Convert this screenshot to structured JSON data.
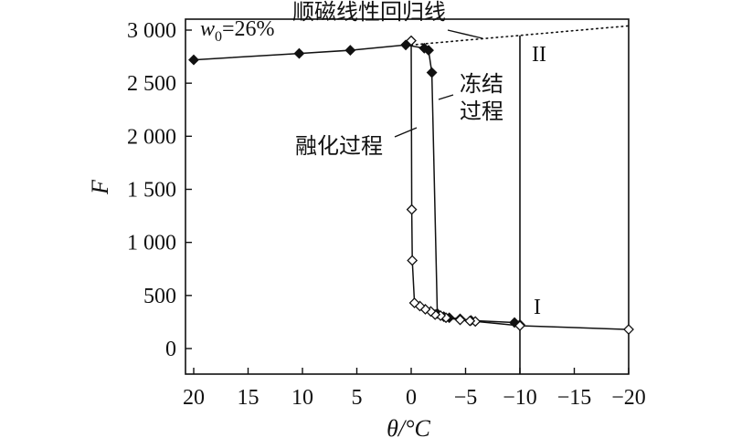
{
  "chart_data": {
    "type": "line",
    "xlabel": "θ/°C",
    "ylabel": "F",
    "x_reversed": true,
    "xlim": [
      20,
      -20
    ],
    "ylim": [
      -250,
      3100
    ],
    "x_ticks": [
      {
        "value": 20,
        "label": "20"
      },
      {
        "value": 15,
        "label": "15"
      },
      {
        "value": 10,
        "label": "10"
      },
      {
        "value": 5,
        "label": "5"
      },
      {
        "value": 0,
        "label": "0"
      },
      {
        "value": -5,
        "label": "−5"
      },
      {
        "value": -10,
        "label": "−10"
      },
      {
        "value": -15,
        "label": "−15"
      },
      {
        "value": -20,
        "label": "−20"
      }
    ],
    "y_ticks": [
      {
        "value": 0,
        "label": "0"
      },
      {
        "value": 500,
        "label": "500"
      },
      {
        "value": 1000,
        "label": "1 000"
      },
      {
        "value": 1500,
        "label": "1 500"
      },
      {
        "value": 2000,
        "label": "2 000"
      },
      {
        "value": 2500,
        "label": "2 500"
      },
      {
        "value": 3000,
        "label": "3 000"
      }
    ],
    "series": [
      {
        "marker": "filled-diamond",
        "points": [
          {
            "x": 20,
            "y": 2720
          },
          {
            "x": 10.3,
            "y": 2780
          },
          {
            "x": 5.6,
            "y": 2810
          },
          {
            "x": 0.5,
            "y": 2860
          },
          {
            "x": -1.2,
            "y": 2830
          },
          {
            "x": -1.6,
            "y": 2810
          },
          {
            "x": -1.9,
            "y": 2600
          },
          {
            "x": -2.4,
            "y": 330
          },
          {
            "x": -3,
            "y": 300
          },
          {
            "x": -3.5,
            "y": 290
          },
          {
            "x": -4.5,
            "y": 280
          },
          {
            "x": -5.5,
            "y": 265
          },
          {
            "x": -9.5,
            "y": 245
          },
          {
            "x": -10,
            "y": 225
          }
        ]
      },
      {
        "marker": "open-diamond",
        "points": [
          {
            "x": -20,
            "y": 180
          },
          {
            "x": -10,
            "y": 215
          },
          {
            "x": -5.9,
            "y": 255
          },
          {
            "x": -5.4,
            "y": 260
          },
          {
            "x": -4.5,
            "y": 270
          },
          {
            "x": -3.2,
            "y": 290
          },
          {
            "x": -2.7,
            "y": 310
          },
          {
            "x": -2.2,
            "y": 320
          },
          {
            "x": -1.8,
            "y": 350
          },
          {
            "x": -1.3,
            "y": 370
          },
          {
            "x": -0.8,
            "y": 400
          },
          {
            "x": -0.3,
            "y": 430
          },
          {
            "x": -0.1,
            "y": 830
          },
          {
            "x": -0.05,
            "y": 1310
          },
          {
            "x": 0,
            "y": 2900
          }
        ]
      }
    ],
    "reference_line": {
      "style": "dotted",
      "points": [
        {
          "x": 0,
          "y": 2860
        },
        {
          "x": -20,
          "y": 3040
        }
      ]
    },
    "vertical_line": {
      "x": -10,
      "y_top": 2950
    },
    "annotations": [
      {
        "text": "w0=26%"
      },
      {
        "text": "顺磁线性回归线"
      },
      {
        "text": "冻结\n过程"
      },
      {
        "text": "融化过程"
      },
      {
        "text": "II"
      },
      {
        "text": "I"
      }
    ]
  }
}
